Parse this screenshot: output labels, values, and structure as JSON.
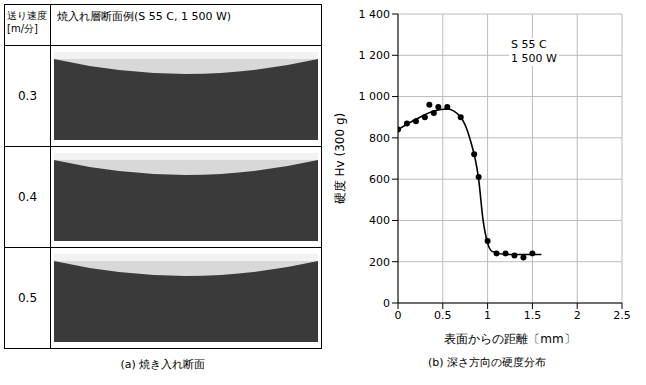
{
  "panel_a": {
    "header": {
      "speed": "送り速度[m/分]",
      "section": "焼入れ層断面例(S 55 C, 1 500 W)"
    },
    "rows": [
      "0.3",
      "0.4",
      "0.5"
    ],
    "caption": "(a) 焼き入れ断面"
  },
  "chart_data": {
    "type": "line",
    "caption": "(b) 深さ方向の硬度分布",
    "x_label": "表面からの距離〔mm〕",
    "y_label": "硬度 Hv (300 g)",
    "annotations": [
      "S 55 C",
      "1 500 W"
    ],
    "xlim": [
      0,
      2.5
    ],
    "xticks": [
      0,
      0.5,
      1.0,
      1.5,
      2.0,
      2.5
    ],
    "ylim": [
      0,
      1400
    ],
    "yticks": [
      0,
      200,
      400,
      600,
      800,
      {
        "value": 1000,
        "label": "1 000"
      },
      {
        "value": 1200,
        "label": "1 200"
      },
      {
        "value": 1400,
        "label": "1 400"
      }
    ],
    "grid": true,
    "series": [
      {
        "type": "scatter",
        "marker": "circle",
        "color": "#000000",
        "x": [
          0,
          0.1,
          0.2,
          0.3,
          0.35,
          0.4,
          0.45,
          0.55,
          0.7,
          0.85,
          0.9,
          1.0,
          1.1,
          1.2,
          1.3,
          1.4,
          1.5
        ],
        "values": [
          840,
          870,
          880,
          900,
          960,
          920,
          950,
          950,
          900,
          720,
          610,
          300,
          240,
          240,
          230,
          220,
          240
        ]
      },
      {
        "type": "line",
        "line_style": "solid",
        "color": "#000000",
        "x": [
          0,
          0.2,
          0.4,
          0.55,
          0.7,
          0.8,
          0.9,
          0.95,
          1.0,
          1.05,
          1.2,
          1.6
        ],
        "values": [
          840,
          890,
          930,
          940,
          900,
          800,
          600,
          400,
          290,
          250,
          235,
          235
        ]
      }
    ]
  }
}
